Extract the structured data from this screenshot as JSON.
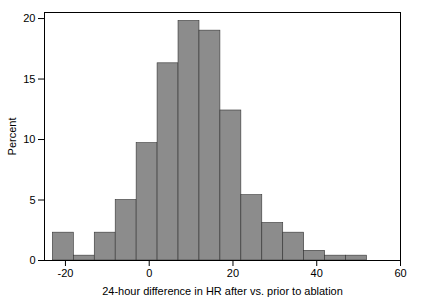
{
  "chart_data": {
    "type": "histogram",
    "x_label": "24-hour difference in HR after vs. prior to ablation",
    "y_label": "Percent",
    "bins": [
      -23,
      -18,
      -13,
      -8,
      -3,
      2,
      7,
      12,
      17,
      22,
      27,
      32,
      37,
      42,
      47,
      52
    ],
    "values": [
      2.3,
      0.4,
      2.3,
      5.0,
      9.7,
      16.3,
      19.8,
      19.0,
      12.4,
      5.4,
      3.1,
      2.3,
      0.8,
      0.4,
      0.4
    ],
    "color": "#8c8c8c",
    "xlim": [
      -25,
      60
    ],
    "xticks": [
      -20,
      0,
      20,
      40,
      60
    ],
    "ylim": [
      0,
      20.5
    ],
    "yticks": [
      0,
      5,
      10,
      15,
      20
    ],
    "grid": false
  }
}
